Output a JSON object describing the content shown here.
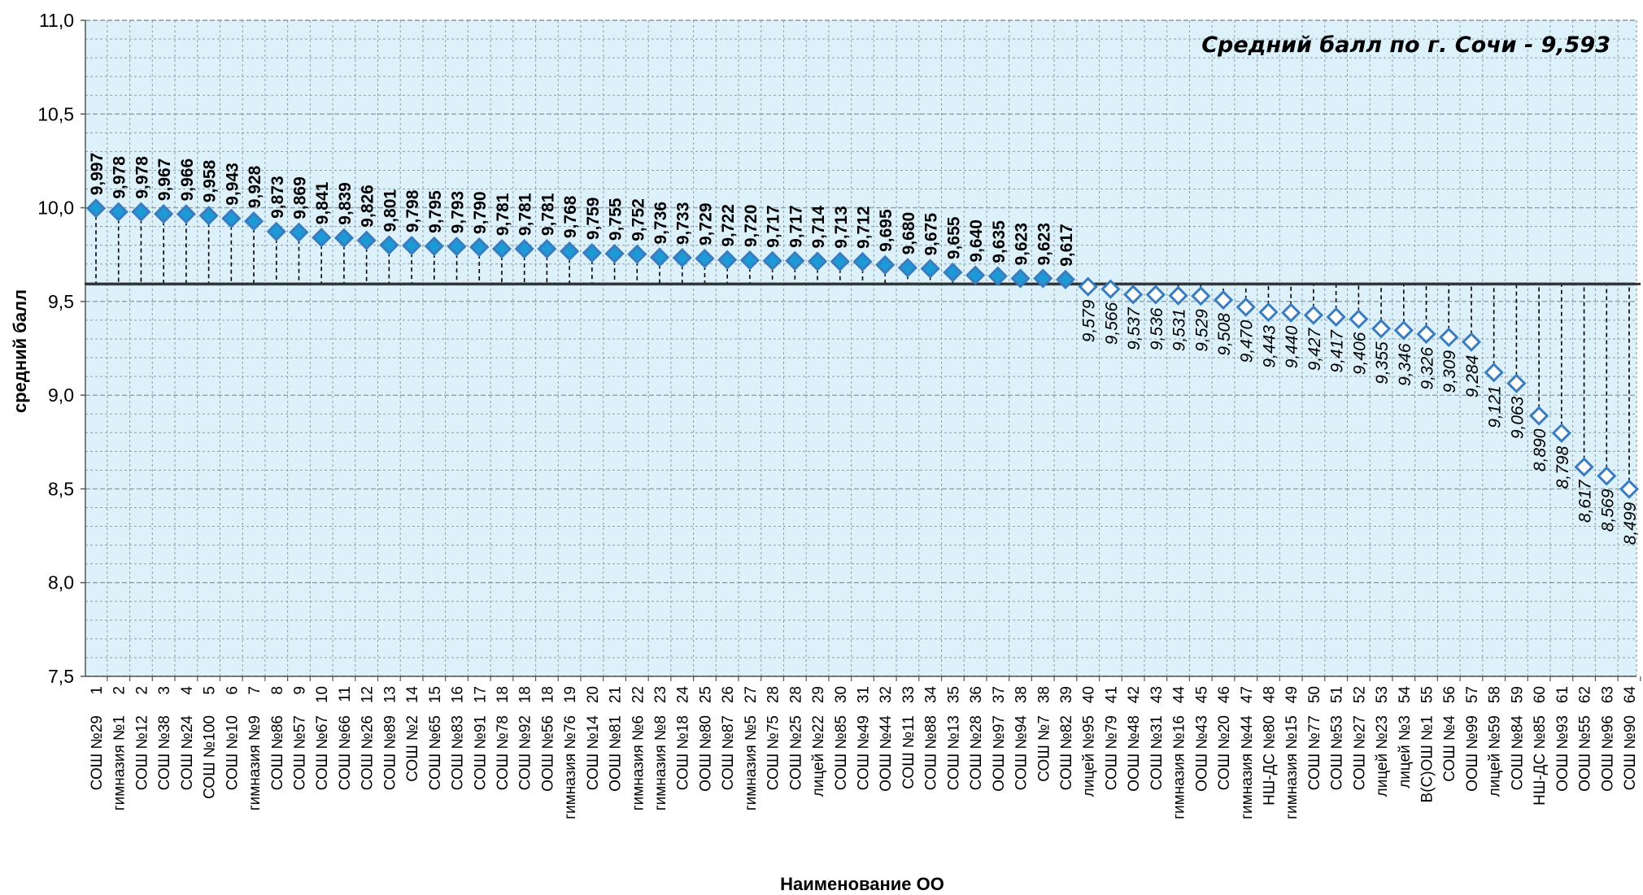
{
  "chart_data": {
    "type": "line",
    "annotation": "Средний балл по г. Сочи - 9,593",
    "xlabel": "Наименование ОО",
    "ylabel": "средний балл",
    "ylim": [
      7.5,
      11.0
    ],
    "yticks": [
      "7,5",
      "8,0",
      "8,5",
      "9,0",
      "9,5",
      "10,0",
      "10,5",
      "11,0"
    ],
    "average": 9.593,
    "grid": true,
    "ranks": [
      1,
      2,
      2,
      3,
      4,
      5,
      6,
      7,
      8,
      9,
      10,
      11,
      12,
      13,
      14,
      15,
      16,
      17,
      18,
      18,
      18,
      19,
      20,
      21,
      22,
      23,
      24,
      25,
      26,
      27,
      28,
      28,
      29,
      30,
      31,
      32,
      33,
      34,
      35,
      36,
      37,
      38,
      38,
      39,
      40,
      41,
      42,
      43,
      44,
      45,
      46,
      47,
      48,
      49,
      50,
      51,
      52,
      53,
      54,
      55,
      56,
      57,
      58,
      59,
      60,
      61,
      62,
      63,
      64
    ],
    "categories": [
      "СОШ №29",
      "гимназия №1",
      "СОШ №12",
      "СОШ №38",
      "СОШ №24",
      "СОШ №100",
      "СОШ №10",
      "гимназия №9",
      "СОШ №86",
      "СОШ №57",
      "СОШ №67",
      "СОШ №66",
      "СОШ №26",
      "СОШ №89",
      "СОШ №2",
      "СОШ №65",
      "СОШ №83",
      "СОШ №91",
      "СОШ №78",
      "СОШ №92",
      "ООШ №56",
      "гимназия №76",
      "СОШ №14",
      "ООШ №81",
      "гимназия №6",
      "гимназия №8",
      "СОШ №18",
      "ООШ №80",
      "СОШ №87",
      "гимназия №5",
      "СОШ №75",
      "СОШ №25",
      "лицей №22",
      "СОШ №85",
      "СОШ №49",
      "ООШ №44",
      "СОШ №11",
      "СОШ №88",
      "СОШ №13",
      "СОШ №28",
      "ООШ №97",
      "СОШ №94",
      "СОШ №7",
      "СОШ №82",
      "лицей №95",
      "СОШ №79",
      "ООШ №48",
      "СОШ №31",
      "гимназия №16",
      "ООШ №43",
      "СОШ №20",
      "гимназия №44",
      "НШ-ДС №80",
      "гимназия №15",
      "СОШ №77",
      "СОШ №53",
      "СОШ №27",
      "лицей №23",
      "лицей №3",
      "В(С)ОШ №1",
      "СОШ №4",
      "ООШ №99",
      "лицей №59",
      "СОШ №84",
      "НШ-ДС №85",
      "ООШ №93",
      "ООШ №55",
      "ООШ №96",
      "СОШ №90"
    ],
    "values": [
      9.997,
      9.978,
      9.978,
      9.967,
      9.966,
      9.958,
      9.943,
      9.928,
      9.873,
      9.869,
      9.841,
      9.839,
      9.826,
      9.801,
      9.798,
      9.795,
      9.793,
      9.79,
      9.781,
      9.781,
      9.781,
      9.768,
      9.759,
      9.755,
      9.752,
      9.736,
      9.733,
      9.729,
      9.722,
      9.72,
      9.717,
      9.717,
      9.714,
      9.713,
      9.712,
      9.695,
      9.68,
      9.675,
      9.655,
      9.64,
      9.635,
      9.623,
      9.623,
      9.617,
      9.579,
      9.566,
      9.537,
      9.536,
      9.531,
      9.529,
      9.508,
      9.47,
      9.443,
      9.44,
      9.427,
      9.417,
      9.406,
      9.355,
      9.346,
      9.326,
      9.309,
      9.284,
      9.121,
      9.063,
      8.89,
      8.798,
      8.617,
      8.569,
      8.499
    ],
    "value_labels": [
      "9,997",
      "9,978",
      "9,978",
      "9,967",
      "9,966",
      "9,958",
      "9,943",
      "9,928",
      "9,873",
      "9,869",
      "9,841",
      "9,839",
      "9,826",
      "9,801",
      "9,798",
      "9,795",
      "9,793",
      "9,790",
      "9,781",
      "9,781",
      "9,781",
      "9,768",
      "9,759",
      "9,755",
      "9,752",
      "9,736",
      "9,733",
      "9,729",
      "9,722",
      "9,720",
      "9,717",
      "9,717",
      "9,714",
      "9,713",
      "9,712",
      "9,695",
      "9,680",
      "9,675",
      "9,655",
      "9,640",
      "9,635",
      "9,623",
      "9,623",
      "9,617",
      "9,579",
      "9,566",
      "9,537",
      "9,536",
      "9,531",
      "9,529",
      "9,508",
      "9,470",
      "9,443",
      "9,440",
      "9,427",
      "9,417",
      "9,406",
      "9,355",
      "9,346",
      "9,326",
      "9,309",
      "9,284",
      "9,121",
      "9,063",
      "8,890",
      "8,798",
      "8,617",
      "8,569",
      "8,499"
    ],
    "colors": {
      "marker_fill": "#1c9ad6",
      "marker_fill_below": "#ffffff",
      "marker_stroke": "#3a7cc0",
      "average_line": "#1fb3e8",
      "plot_bg": "#ddf1fa",
      "grid": "#8a9fae"
    }
  }
}
